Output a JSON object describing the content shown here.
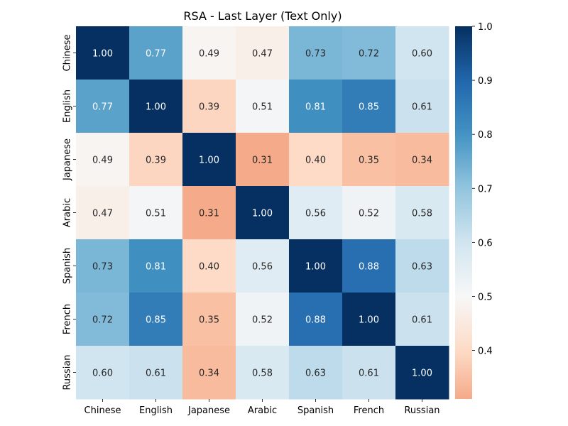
{
  "chart_data": {
    "type": "heatmap",
    "title": "RSA - Last Layer (Text Only)",
    "xlabel": "",
    "ylabel": "",
    "x_categories": [
      "Chinese",
      "English",
      "Japanese",
      "Arabic",
      "Spanish",
      "French",
      "Russian"
    ],
    "y_categories": [
      "Chinese",
      "English",
      "Japanese",
      "Arabic",
      "Spanish",
      "French",
      "Russian"
    ],
    "values": [
      [
        1.0,
        0.77,
        0.49,
        0.47,
        0.73,
        0.72,
        0.6
      ],
      [
        0.77,
        1.0,
        0.39,
        0.51,
        0.81,
        0.85,
        0.61
      ],
      [
        0.49,
        0.39,
        1.0,
        0.31,
        0.4,
        0.35,
        0.34
      ],
      [
        0.47,
        0.51,
        0.31,
        1.0,
        0.56,
        0.52,
        0.58
      ],
      [
        0.73,
        0.81,
        0.4,
        0.56,
        1.0,
        0.88,
        0.63
      ],
      [
        0.72,
        0.85,
        0.35,
        0.52,
        0.88,
        1.0,
        0.61
      ],
      [
        0.6,
        0.61,
        0.34,
        0.58,
        0.63,
        0.61,
        1.0
      ]
    ],
    "value_format": "2 decimals",
    "colormap": "RdBu (diverging, centered at 0.5)",
    "color_range": [
      0.31,
      1.0
    ],
    "colorbar": {
      "ticks": [
        0.4,
        0.5,
        0.6,
        0.7,
        0.8,
        0.9,
        1.0
      ],
      "tick_labels": [
        "0.4",
        "0.5",
        "0.6",
        "0.7",
        "0.8",
        "0.9",
        "1.0"
      ],
      "placement": "right"
    },
    "colors": {
      "low": "#f4a582",
      "mid": "#f7f7f7",
      "high": "#053061",
      "text_dark": "#262626",
      "text_light": "#ffffff"
    }
  }
}
